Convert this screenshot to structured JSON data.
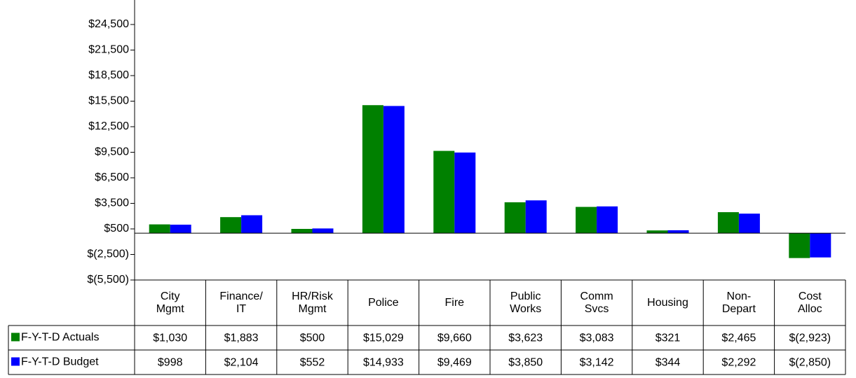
{
  "chart_data": {
    "type": "bar",
    "categories": [
      "City\nMgmt",
      "Finance/\nIT",
      "HR/Risk\nMgmt",
      "Police",
      "Fire",
      "Public\nWorks",
      "Comm\nSvcs",
      "Housing",
      "Non-\nDepart",
      "Cost\nAlloc"
    ],
    "series": [
      {
        "name": "F-Y-T-D Actuals",
        "color": "#008000",
        "values": [
          1030,
          1883,
          500,
          15029,
          9660,
          3623,
          3083,
          321,
          2465,
          -2923
        ],
        "value_labels": [
          "$1,030",
          "$1,883",
          "$500",
          "$15,029",
          "$9,660",
          "$3,623",
          "$3,083",
          "$321",
          "$2,465",
          "$(2,923)"
        ]
      },
      {
        "name": "F-Y-T-D Budget",
        "color": "#0000ff",
        "values": [
          998,
          2104,
          552,
          14933,
          9469,
          3850,
          3142,
          344,
          2292,
          -2850
        ],
        "value_labels": [
          "$998",
          "$2,104",
          "$552",
          "$14,933",
          "$9,469",
          "$3,850",
          "$3,142",
          "$344",
          "$2,292",
          "$(2,850)"
        ]
      }
    ],
    "ylim": [
      -5500,
      27500
    ],
    "yticks": [
      {
        "value": -5500,
        "label": "$(5,500)"
      },
      {
        "value": -2500,
        "label": "$(2,500)"
      },
      {
        "value": 500,
        "label": "$500"
      },
      {
        "value": 3500,
        "label": "$3,500"
      },
      {
        "value": 6500,
        "label": "$6,500"
      },
      {
        "value": 9500,
        "label": "$9,500"
      },
      {
        "value": 12500,
        "label": "$12,500"
      },
      {
        "value": 15500,
        "label": "$15,500"
      },
      {
        "value": 18500,
        "label": "$18,500"
      },
      {
        "value": 21500,
        "label": "$21,500"
      },
      {
        "value": 24500,
        "label": "$24,500"
      }
    ],
    "grid": false
  }
}
